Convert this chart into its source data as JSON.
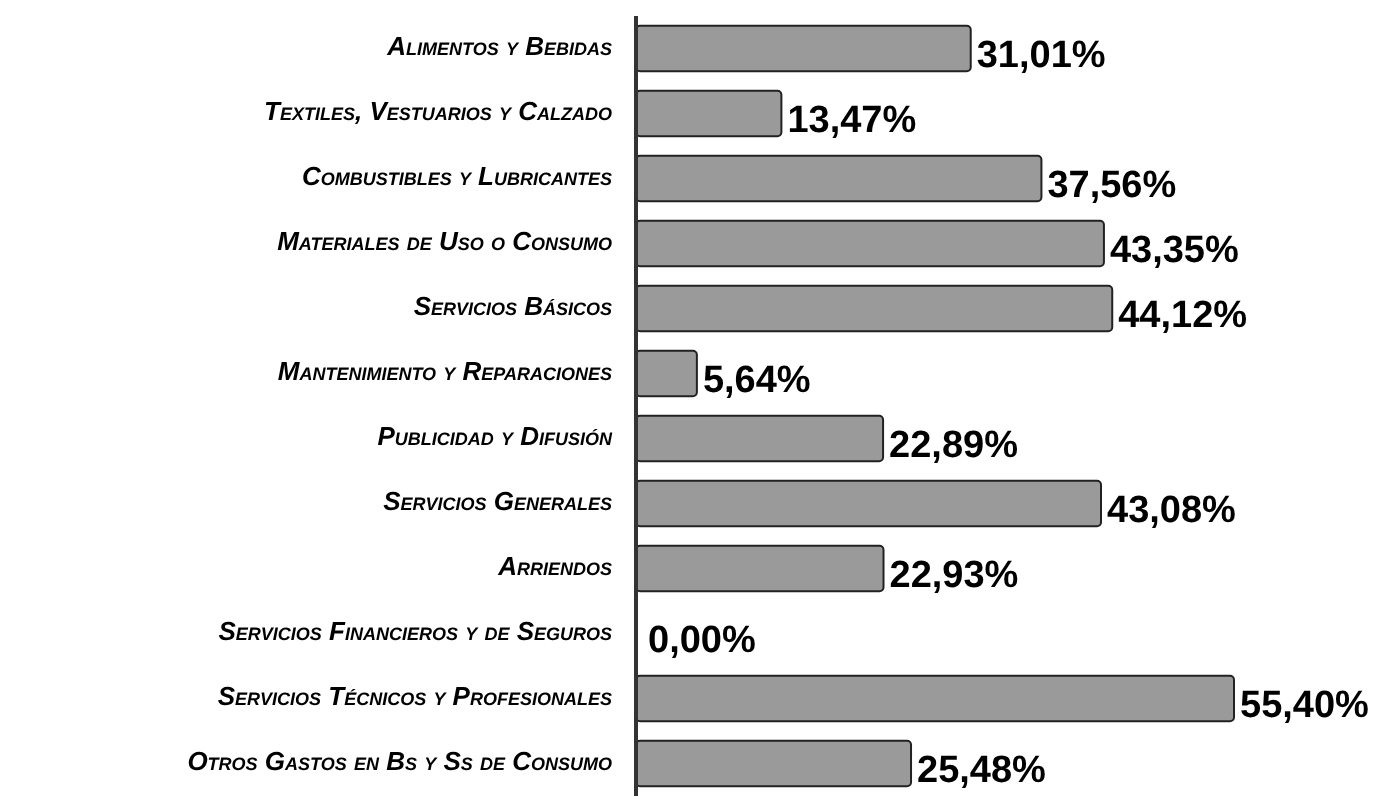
{
  "chart_data": {
    "type": "bar",
    "orientation": "horizontal",
    "categories": [
      "Alimentos y Bebidas",
      "Textiles, Vestuarios y Calzado",
      "Combustibles y Lubricantes",
      "Materiales de Uso o Consumo",
      "Servicios Básicos",
      "Mantenimiento y Reparaciones",
      "Publicidad y Difusión",
      "Servicios Generales",
      "Arriendos",
      "Servicios Financieros y de Seguros",
      "Servicios Técnicos y Profesionales",
      "Otros Gastos en Bs y Ss de Consumo"
    ],
    "values": [
      31.01,
      13.47,
      37.56,
      43.35,
      44.12,
      5.64,
      22.89,
      43.08,
      22.93,
      0.0,
      55.4,
      25.48
    ],
    "value_labels": [
      "31,01%",
      "13,47%",
      "37,56%",
      "43,35%",
      "44,12%",
      "5,64%",
      "22,89%",
      "43,08%",
      "22,93%",
      "0,00%",
      "55,40%",
      "25,48%"
    ],
    "color": "#9a9a9a"
  }
}
